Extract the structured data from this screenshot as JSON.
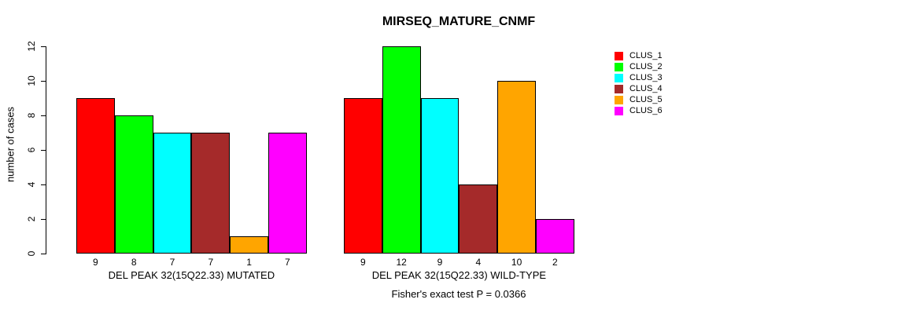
{
  "chart_data": {
    "type": "bar",
    "title": "MIRSEQ_MATURE_CNMF",
    "ylabel": "number of cases",
    "ylim": [
      0,
      12
    ],
    "yticks": [
      0,
      2,
      4,
      6,
      8,
      10,
      12
    ],
    "grid": false,
    "legend_position": "right",
    "series": [
      {
        "name": "CLUS_1",
        "color": "#FF0000"
      },
      {
        "name": "CLUS_2",
        "color": "#00FF00"
      },
      {
        "name": "CLUS_3",
        "color": "#00FFFF"
      },
      {
        "name": "CLUS_4",
        "color": "#A52A2A"
      },
      {
        "name": "CLUS_5",
        "color": "#FFA500"
      },
      {
        "name": "CLUS_6",
        "color": "#FF00FF"
      }
    ],
    "groups": [
      {
        "label": "DEL PEAK 32(15Q22.33) MUTATED",
        "values": [
          9,
          8,
          7,
          7,
          1,
          7
        ]
      },
      {
        "label": "DEL PEAK 32(15Q22.33) WILD-TYPE",
        "values": [
          9,
          12,
          9,
          4,
          10,
          2
        ]
      }
    ],
    "footnote": "Fisher's exact test P = 0.0366"
  }
}
